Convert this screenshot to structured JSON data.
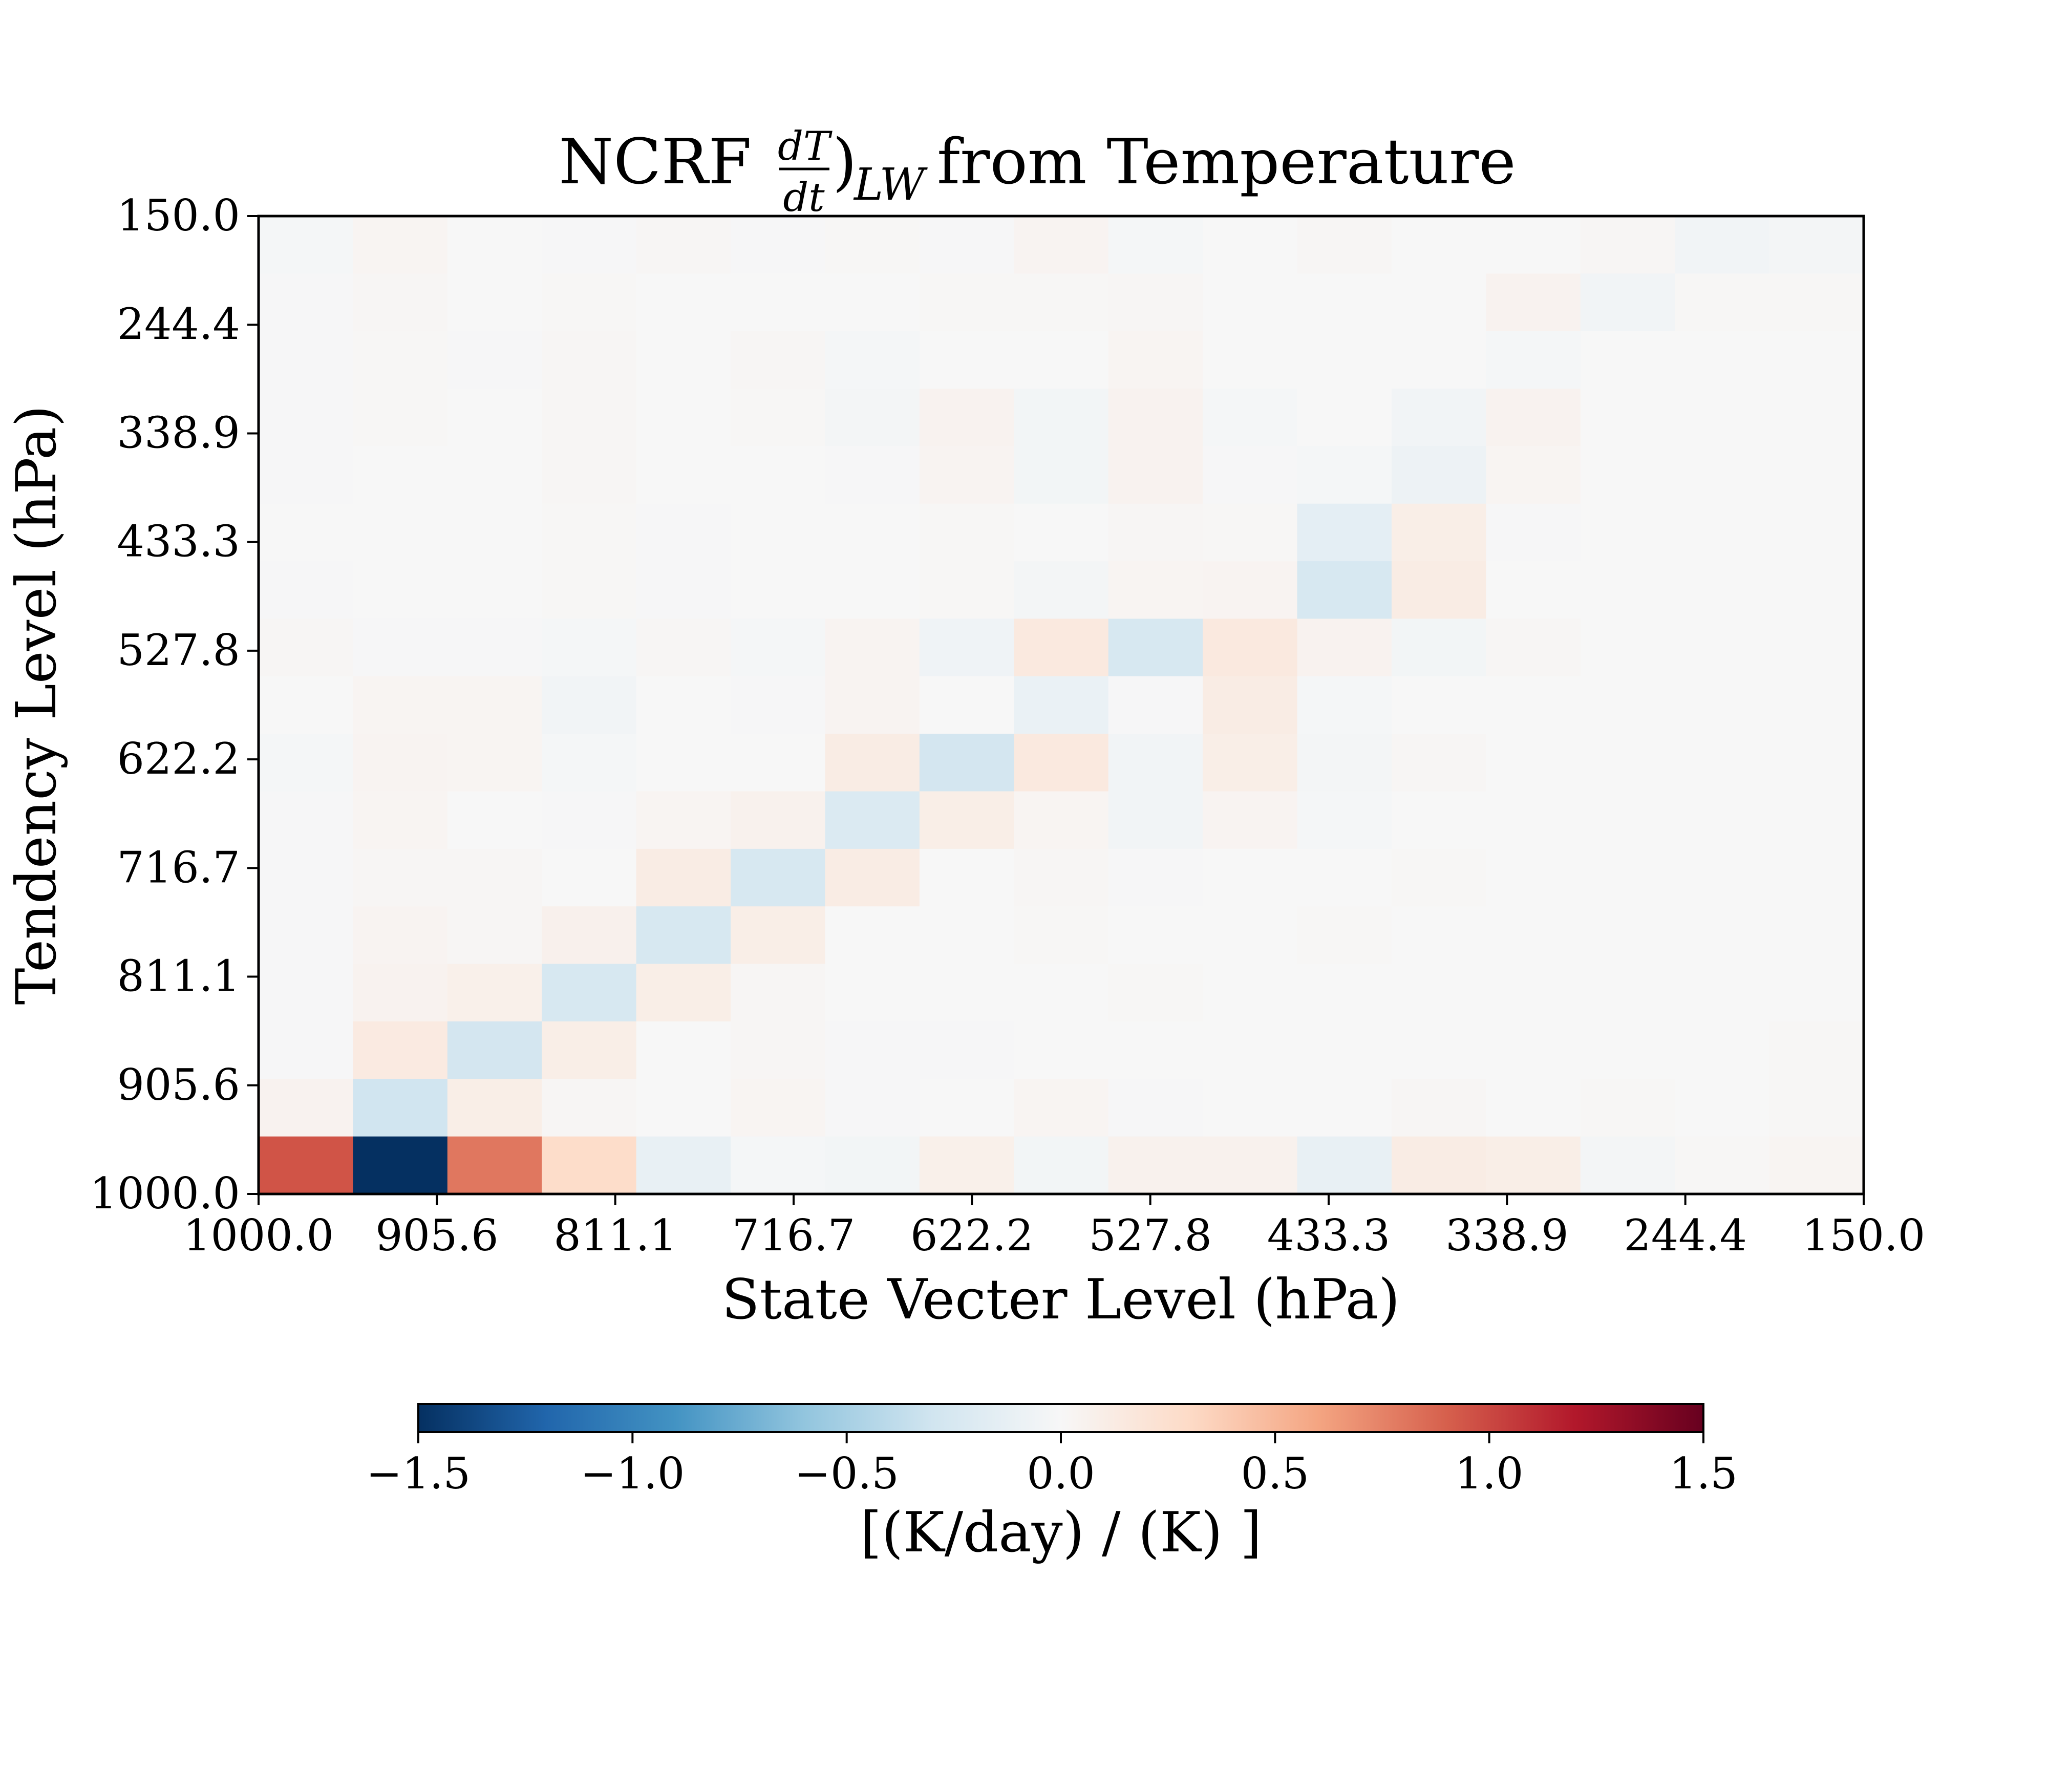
{
  "chart_data": {
    "type": "heatmap",
    "title_main": "NCRF ",
    "title_frac_num": "dT",
    "title_frac_den": "dt",
    "title_paren": ")",
    "title_sub": "LW",
    "title_rest": " from Temperature",
    "xlabel": "State Vecter Level (hPa)",
    "ylabel": "Tendency Level (hPa)",
    "x_ticks": [
      "1000.0",
      "905.6",
      "811.1",
      "716.7",
      "622.2",
      "527.8",
      "433.3",
      "338.9",
      "244.4",
      "150.0"
    ],
    "y_ticks": [
      "150.0",
      "244.4",
      "338.9",
      "433.3",
      "527.8",
      "622.2",
      "716.7",
      "811.1",
      "905.6",
      "1000.0"
    ],
    "colormap": "RdBu_r",
    "color_stops": [
      "#053061",
      "#2166ac",
      "#4393c3",
      "#92c5de",
      "#d1e5f0",
      "#f7f7f7",
      "#fddbc7",
      "#f4a582",
      "#d6604d",
      "#b2182b",
      "#67001f"
    ],
    "colorbar": {
      "vmin": -1.5,
      "vmax": 1.5,
      "ticks": [
        "−1.5",
        "−1.0",
        "−0.5",
        "0.0",
        "0.5",
        "1.0",
        "1.5"
      ],
      "label": "[(K/day) / (K) ]"
    },
    "rows_top_to_bottom": [
      [
        -0.02,
        0.03,
        0.0,
        -0.01,
        0.02,
        -0.01,
        0.01,
        -0.01,
        0.04,
        -0.02,
        0.0,
        0.02,
        0.0,
        0.0,
        0.02,
        -0.05,
        -0.03
      ],
      [
        -0.01,
        0.02,
        0.0,
        0.01,
        0.0,
        0.0,
        0.0,
        0.01,
        0.01,
        0.02,
        0.0,
        0.0,
        0.0,
        0.05,
        -0.05,
        0.01,
        0.01
      ],
      [
        -0.01,
        0.01,
        -0.01,
        0.02,
        0.0,
        0.02,
        -0.02,
        0.0,
        0.0,
        0.03,
        0.0,
        0.0,
        0.0,
        -0.02,
        0.0,
        0.0,
        0.0
      ],
      [
        -0.01,
        0.01,
        0.0,
        0.02,
        0.0,
        0.01,
        -0.03,
        0.05,
        -0.04,
        0.05,
        -0.02,
        0.0,
        -0.05,
        0.05,
        0.0,
        0.0,
        0.0
      ],
      [
        -0.01,
        0.0,
        0.0,
        0.02,
        0.0,
        0.0,
        -0.01,
        0.04,
        -0.04,
        0.05,
        -0.01,
        -0.02,
        -0.08,
        0.03,
        0.0,
        0.0,
        0.0
      ],
      [
        0.0,
        0.0,
        0.0,
        0.01,
        -0.01,
        0.0,
        0.0,
        0.01,
        0.0,
        0.02,
        0.01,
        -0.15,
        0.1,
        -0.01,
        0.0,
        0.0,
        0.0
      ],
      [
        -0.01,
        0.0,
        0.0,
        0.01,
        -0.01,
        0.0,
        0.0,
        0.01,
        -0.03,
        0.03,
        0.04,
        -0.25,
        0.12,
        0.0,
        0.0,
        0.0,
        0.0
      ],
      [
        0.02,
        -0.01,
        -0.01,
        -0.02,
        0.02,
        -0.02,
        0.04,
        -0.06,
        0.15,
        -0.25,
        0.15,
        0.05,
        -0.04,
        0.02,
        0.0,
        0.0,
        0.0
      ],
      [
        0.0,
        0.03,
        0.03,
        -0.05,
        0.0,
        -0.01,
        0.04,
        0.0,
        -0.1,
        -0.01,
        0.12,
        -0.02,
        0.0,
        0.0,
        0.0,
        0.0,
        0.0
      ],
      [
        -0.02,
        0.04,
        0.03,
        -0.02,
        0.0,
        0.0,
        0.12,
        -0.28,
        0.15,
        -0.05,
        0.1,
        -0.03,
        0.02,
        0.0,
        0.0,
        0.0,
        0.0
      ],
      [
        -0.01,
        0.03,
        0.0,
        -0.01,
        0.03,
        0.06,
        -0.22,
        0.1,
        0.03,
        -0.05,
        0.04,
        -0.02,
        0.0,
        0.0,
        0.0,
        0.0,
        0.0
      ],
      [
        -0.01,
        0.02,
        0.02,
        0.0,
        0.12,
        -0.25,
        0.12,
        0.0,
        0.02,
        -0.01,
        0.0,
        0.0,
        0.01,
        0.0,
        0.0,
        0.0,
        0.0
      ],
      [
        -0.01,
        0.04,
        0.02,
        0.07,
        -0.25,
        0.1,
        0.0,
        0.0,
        0.01,
        0.0,
        0.0,
        0.01,
        0.0,
        0.0,
        0.0,
        0.0,
        0.0
      ],
      [
        -0.01,
        0.05,
        0.08,
        -0.25,
        0.1,
        0.02,
        0.0,
        0.0,
        0.0,
        0.01,
        0.0,
        0.0,
        0.0,
        0.0,
        0.0,
        0.0,
        0.0
      ],
      [
        -0.01,
        0.14,
        -0.28,
        0.1,
        0.0,
        0.02,
        -0.01,
        -0.01,
        0.0,
        0.0,
        0.0,
        0.0,
        0.0,
        0.0,
        0.0,
        0.0,
        0.01
      ],
      [
        0.05,
        -0.3,
        0.1,
        0.02,
        0.0,
        0.03,
        -0.01,
        0.0,
        0.03,
        -0.01,
        0.0,
        0.0,
        0.02,
        0.0,
        0.01,
        0.0,
        0.01
      ],
      [
        0.95,
        -1.5,
        0.8,
        0.28,
        -0.12,
        -0.02,
        -0.04,
        0.08,
        -0.04,
        0.06,
        0.06,
        -0.12,
        0.12,
        0.1,
        -0.03,
        0.01,
        0.03
      ]
    ]
  }
}
